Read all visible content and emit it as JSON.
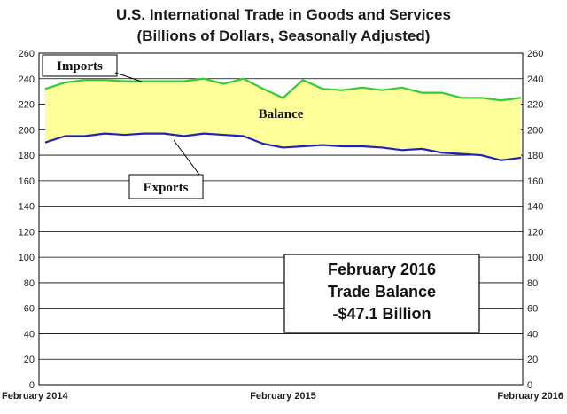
{
  "chart_data": {
    "type": "area",
    "title": "U.S. International Trade in Goods and Services",
    "subtitle": "(Billions of Dollars, Seasonally Adjusted)",
    "ylim": [
      0,
      260
    ],
    "yticks": [
      0,
      20,
      40,
      60,
      80,
      100,
      120,
      140,
      160,
      180,
      200,
      220,
      240,
      260
    ],
    "xtick_labels": [
      "February 2014",
      "February 2015",
      "February 2016"
    ],
    "x": [
      "Feb 2014",
      "Mar 2014",
      "Apr 2014",
      "May 2014",
      "Jun 2014",
      "Jul 2014",
      "Aug 2014",
      "Sep 2014",
      "Oct 2014",
      "Nov 2014",
      "Dec 2014",
      "Jan 2015",
      "Feb 2015",
      "Mar 2015",
      "Apr 2015",
      "May 2015",
      "Jun 2015",
      "Jul 2015",
      "Aug 2015",
      "Sep 2015",
      "Oct 2015",
      "Nov 2015",
      "Dec 2015",
      "Jan 2016",
      "Feb 2016"
    ],
    "grid": true,
    "series": [
      {
        "name": "Imports",
        "color": "#33cc33",
        "values": [
          232,
          237,
          239,
          239,
          238,
          238,
          238,
          238,
          240,
          236,
          240,
          232,
          225,
          239,
          232,
          231,
          233,
          231,
          233,
          229,
          229,
          225,
          225,
          223,
          225
        ]
      },
      {
        "name": "Exports",
        "color": "#2222bb",
        "values": [
          190,
          195,
          195,
          197,
          196,
          197,
          197,
          195,
          197,
          196,
          195,
          189,
          186,
          187,
          188,
          187,
          187,
          186,
          184,
          185,
          182,
          181,
          180,
          176,
          178
        ]
      }
    ],
    "fill_between": {
      "label": "Balance",
      "color": "#ffff99"
    },
    "annotations": {
      "imports": "Imports",
      "exports": "Exports",
      "balance": "Balance"
    },
    "summary_box": [
      "February 2016",
      "Trade Balance",
      "-$47.1 Billion"
    ]
  }
}
